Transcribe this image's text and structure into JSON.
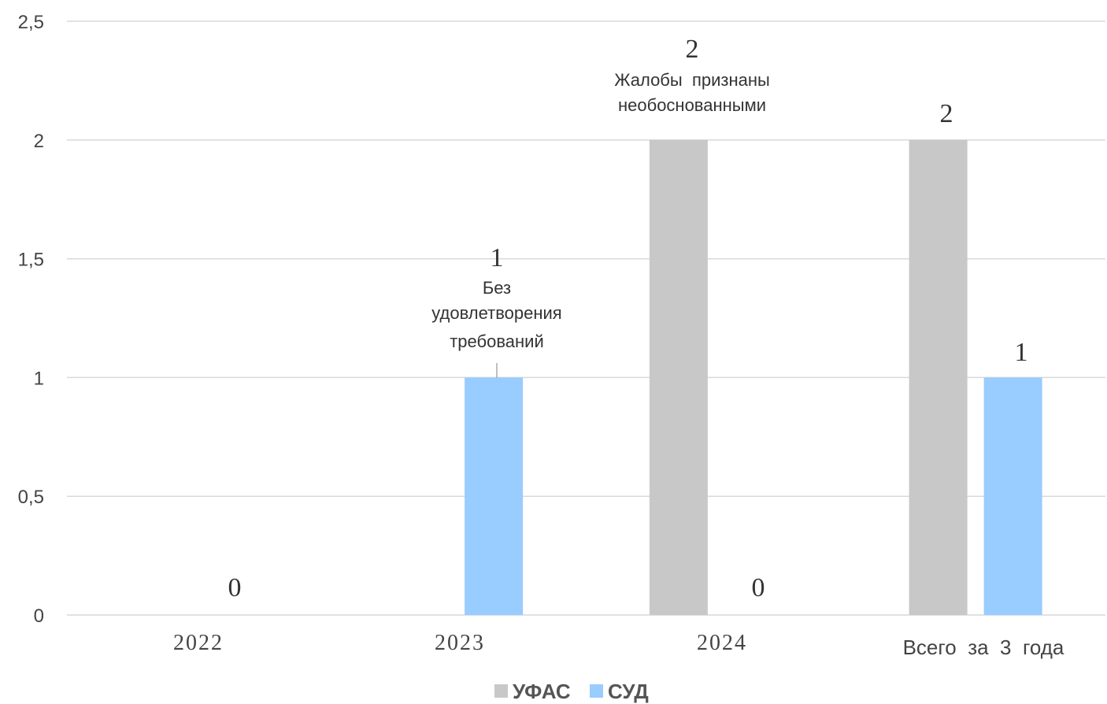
{
  "chart_data": {
    "type": "bar",
    "categories": [
      "2022",
      "2023",
      "2024",
      "Всего  за  3  года"
    ],
    "series": [
      {
        "name": "УФАС",
        "color": "#c8c8c8",
        "values": [
          0,
          0,
          2,
          2
        ]
      },
      {
        "name": "СУД",
        "color": "#99ccff",
        "values": [
          0,
          1,
          0,
          1
        ]
      }
    ],
    "ylim": [
      0,
      2.5
    ],
    "yticks": [
      "0",
      "0,5",
      "1",
      "1,5",
      "2",
      "2,5"
    ],
    "grid": true,
    "legend_position": "bottom",
    "data_labels": [
      {
        "category": 0,
        "text": "0"
      },
      {
        "category": 1,
        "text": "1"
      },
      {
        "category": 2,
        "text": "2"
      },
      {
        "category": 2,
        "text": "0"
      },
      {
        "category": 3,
        "text": "2"
      },
      {
        "category": 3,
        "text": "1"
      }
    ],
    "annotations": [
      {
        "category": 1,
        "lines": [
          "Без",
          "удовлетворения",
          "требований"
        ]
      },
      {
        "category": 2,
        "lines": [
          "Жалобы  признаны",
          "необоснованными"
        ]
      }
    ]
  }
}
